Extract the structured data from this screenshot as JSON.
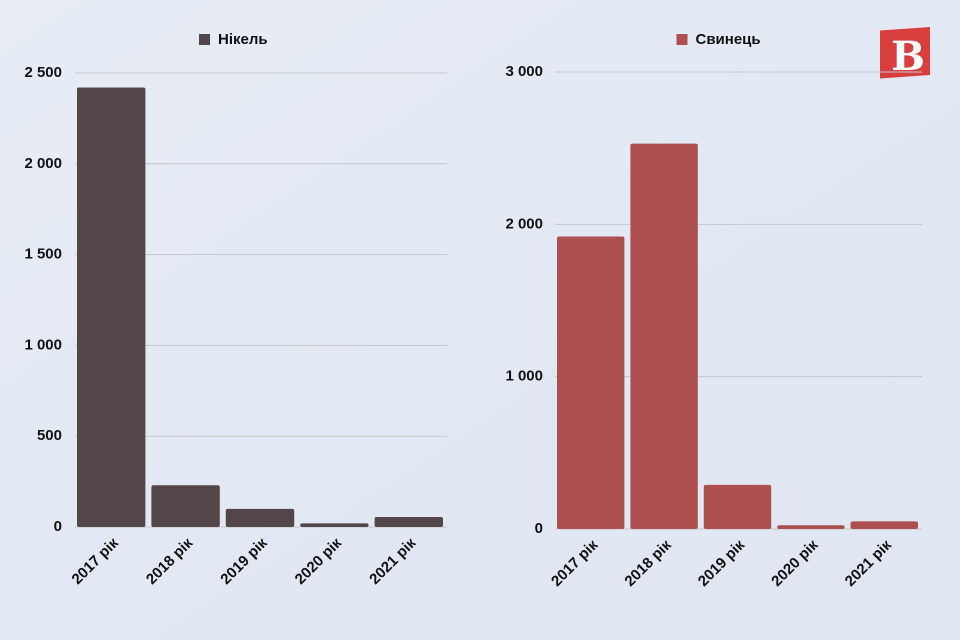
{
  "logo": "B",
  "chart_data": [
    {
      "type": "bar",
      "categories": [
        "2017 рік",
        "2018 рік",
        "2019 рік",
        "2020 рік",
        "2021 рік"
      ],
      "series": [
        {
          "name": "Нікель",
          "color": "#524649",
          "values": [
            2420,
            230,
            100,
            20,
            55
          ]
        }
      ],
      "ylim": [
        0,
        2500
      ],
      "yticks": [
        0,
        500,
        {
          "value": 1000,
          "label": "1 000"
        },
        {
          "value": 1500,
          "label": "1 500"
        },
        {
          "value": 2000,
          "label": "2 000"
        },
        {
          "value": 2500,
          "label": "2 500"
        }
      ],
      "grid": true
    },
    {
      "type": "bar",
      "categories": [
        "2017 рік",
        "2018 рік",
        "2019 рік",
        "2020 рік",
        "2021 рік"
      ],
      "series": [
        {
          "name": "Свинець",
          "color": "#ad4e4f",
          "values": [
            1920,
            2530,
            290,
            25,
            50
          ]
        }
      ],
      "ylim": [
        0,
        3000
      ],
      "yticks": [
        0,
        {
          "value": 1000,
          "label": "1 000"
        },
        {
          "value": 2000,
          "label": "2 000"
        },
        {
          "value": 3000,
          "label": "3 000"
        }
      ],
      "grid": true
    }
  ]
}
